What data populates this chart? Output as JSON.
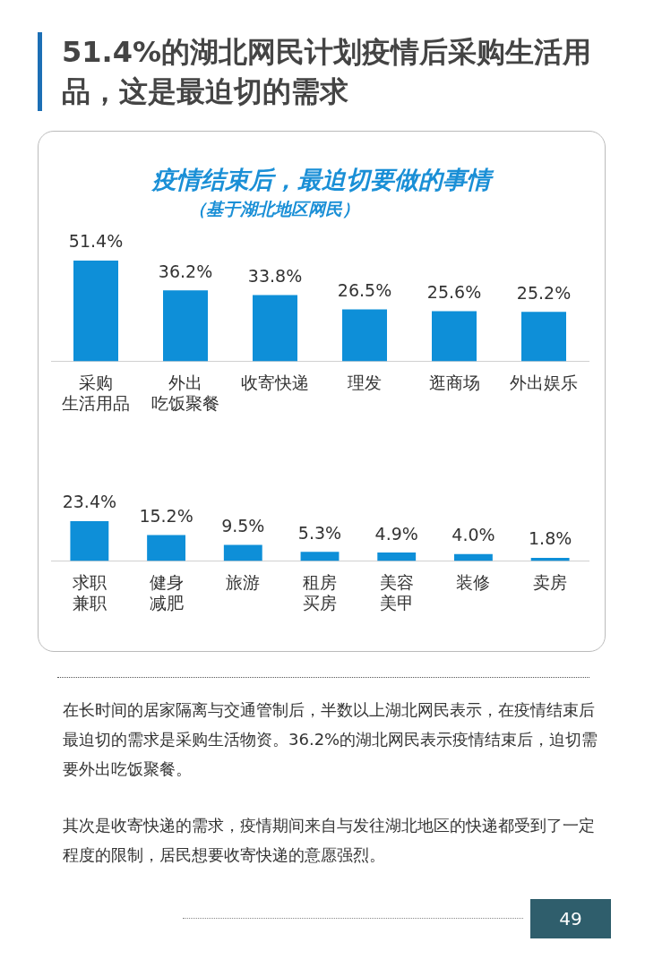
{
  "chart_data": [
    {
      "type": "bar",
      "title": "51.4%的湖北网民计划疫情后采购生活用品，这是最迫切的需求",
      "subtitle": "疫情结束后，最迫切要做的事情",
      "annotations": [
        "（基于湖北地区网民）"
      ],
      "categories": [
        "采购生活用品",
        "外出吃饭聚餐",
        "收寄快递",
        "理发",
        "逛商场",
        "外出娱乐"
      ],
      "values": [
        51.4,
        36.2,
        33.8,
        26.5,
        25.6,
        25.2
      ],
      "color": "#0e8fd8",
      "value_labels": [
        "51.4%",
        "36.2%",
        "33.8%",
        "26.5%",
        "25.6%",
        "25.2%"
      ]
    },
    {
      "type": "bar",
      "annotations": [
        "在长时间的居家隔离与交通管制后，半数以上湖北网民表示，在疫情结束后最迫切的需求是采购生活物资。36.2%的湖北网民表示疫情结束后，迫切需要外出吃饭聚餐。",
        "其次是收寄快递的需求，疫情期间来自与发往湖北地区的快递都受到了一定程度的限制，居民想要收寄快递的意愿强烈。",
        "49"
      ],
      "categories": [
        "求职兼职",
        "健身减肥",
        "旅游",
        "租房买房",
        "美容美甲",
        "装修",
        "卖房"
      ],
      "values": [
        23.4,
        15.2,
        9.5,
        5.3,
        4.9,
        4.0,
        1.8
      ],
      "color": "#0e8fd8",
      "value_labels": [
        "23.4%",
        "15.2%",
        "9.5%",
        "5.3%",
        "4.9%",
        "4.0%",
        "1.8%"
      ]
    }
  ]
}
